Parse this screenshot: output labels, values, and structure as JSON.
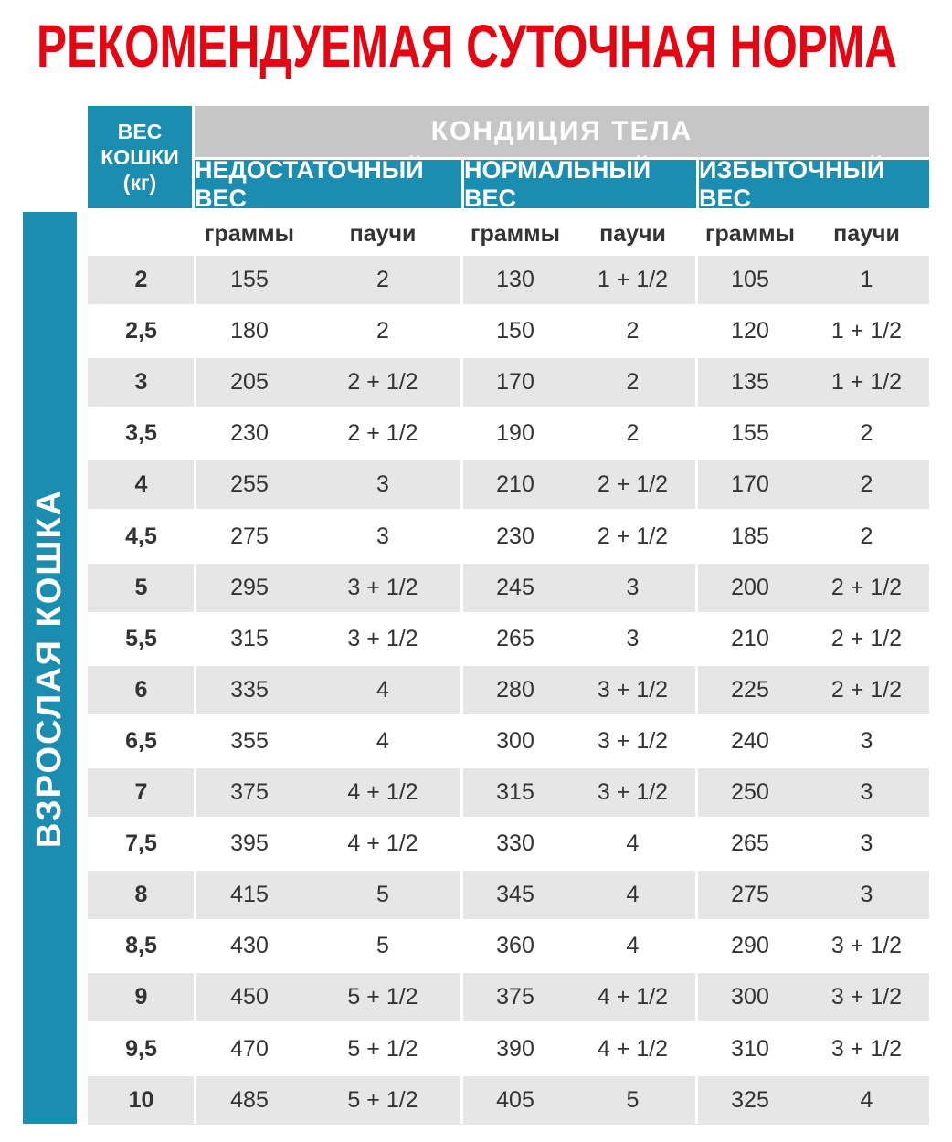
{
  "title": "РЕКОМЕНДУЕМАЯ СУТОЧНАЯ НОРМА",
  "side_label": "ВЗРОСЛАЯ КОШКА",
  "header": {
    "weight": [
      "ВЕС",
      "КОШКИ",
      "(кг)"
    ],
    "condition": "КОНДИЦИЯ ТЕЛА",
    "groups": [
      "НЕДОСТАТОЧНЫЙ ВЕС",
      "НОРМАЛЬНЫЙ ВЕС",
      "ИЗБЫТОЧНЫЙ ВЕС"
    ],
    "units": [
      "граммы",
      "паучи",
      "граммы",
      "паучи",
      "граммы",
      "паучи"
    ]
  },
  "table": {
    "rows": [
      [
        "2",
        "155",
        "2",
        "130",
        "1 + 1/2",
        "105",
        "1"
      ],
      [
        "2,5",
        "180",
        "2",
        "150",
        "2",
        "120",
        "1 + 1/2"
      ],
      [
        "3",
        "205",
        "2 + 1/2",
        "170",
        "2",
        "135",
        "1 + 1/2"
      ],
      [
        "3,5",
        "230",
        "2 + 1/2",
        "190",
        "2",
        "155",
        "2"
      ],
      [
        "4",
        "255",
        "3",
        "210",
        "2 + 1/2",
        "170",
        "2"
      ],
      [
        "4,5",
        "275",
        "3",
        "230",
        "2 + 1/2",
        "185",
        "2"
      ],
      [
        "5",
        "295",
        "3 + 1/2",
        "245",
        "3",
        "200",
        "2 + 1/2"
      ],
      [
        "5,5",
        "315",
        "3 + 1/2",
        "265",
        "3",
        "210",
        "2 + 1/2"
      ],
      [
        "6",
        "335",
        "4",
        "280",
        "3 + 1/2",
        "225",
        "2 + 1/2"
      ],
      [
        "6,5",
        "355",
        "4",
        "300",
        "3 + 1/2",
        "240",
        "3"
      ],
      [
        "7",
        "375",
        "4 + 1/2",
        "315",
        "3 + 1/2",
        "250",
        "3"
      ],
      [
        "7,5",
        "395",
        "4 + 1/2",
        "330",
        "4",
        "265",
        "3"
      ],
      [
        "8",
        "415",
        "5",
        "345",
        "4",
        "275",
        "3"
      ],
      [
        "8,5",
        "430",
        "5",
        "360",
        "4",
        "290",
        "3 + 1/2"
      ],
      [
        "9",
        "450",
        "5 + 1/2",
        "375",
        "4 + 1/2",
        "300",
        "3 + 1/2"
      ],
      [
        "9,5",
        "470",
        "5 + 1/2",
        "390",
        "4 + 1/2",
        "310",
        "3 + 1/2"
      ],
      [
        "10",
        "485",
        "5 + 1/2",
        "405",
        "5",
        "325",
        "4"
      ]
    ]
  }
}
